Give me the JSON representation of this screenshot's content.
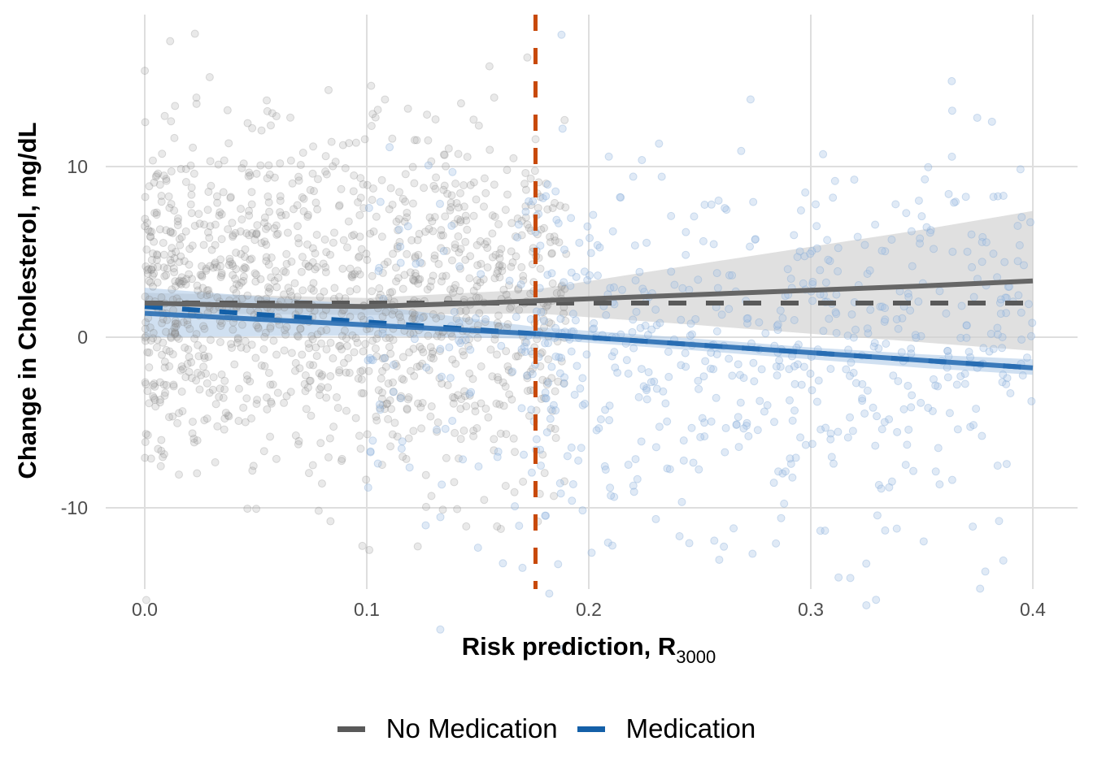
{
  "chart_data": {
    "type": "scatter",
    "title": "",
    "xlabel": "Risk prediction, R",
    "xlabel_subscript": "3000",
    "ylabel": "Change in Cholesterol, mg/dL",
    "xlim": [
      -0.0,
      0.4
    ],
    "ylim": [
      -14.5,
      18.5
    ],
    "x_ticks": [
      0.0,
      0.1,
      0.2,
      0.3,
      0.4
    ],
    "x_tick_labels": [
      "0.0",
      "0.1",
      "0.2",
      "0.3",
      "0.4"
    ],
    "y_ticks": [
      -10,
      0,
      10
    ],
    "y_tick_labels": [
      "-10",
      "0",
      "10"
    ],
    "grid": true,
    "legend_position": "bottom",
    "threshold": {
      "x": 0.176,
      "color": "#C8490A",
      "style": "dashed"
    },
    "series": [
      {
        "name": "No Medication",
        "color": "#595959",
        "point_color": "#8c8c8c",
        "x_range": [
          0.0,
          0.176
        ],
        "n_points": 1300,
        "y_center": 2.0,
        "y_spread": 5.0,
        "fit_solid": {
          "x": [
            0.0,
            0.05,
            0.1,
            0.15,
            0.2,
            0.25,
            0.3,
            0.35,
            0.4
          ],
          "y": [
            2.0,
            1.85,
            1.8,
            2.0,
            2.25,
            2.5,
            2.75,
            3.0,
            3.3
          ]
        },
        "fit_band": {
          "x": [
            0.0,
            0.1,
            0.176,
            0.25,
            0.3,
            0.35,
            0.4
          ],
          "lower": [
            1.4,
            1.3,
            1.4,
            0.7,
            0.2,
            -0.3,
            -0.8
          ],
          "upper": [
            2.6,
            2.3,
            2.8,
            4.3,
            5.3,
            6.3,
            7.4
          ]
        },
        "fit_dashed": {
          "x": [
            0.0,
            0.4
          ],
          "y": [
            2.0,
            2.0
          ]
        }
      },
      {
        "name": "Medication",
        "color": "#1460A8",
        "point_color": "#a6c4e4",
        "x_range": [
          0.1,
          0.4
        ],
        "n_points": 700,
        "y_center": -1.0,
        "y_spread": 5.5,
        "fit_solid": {
          "x": [
            0.0,
            0.176,
            0.4
          ],
          "y": [
            1.4,
            0.2,
            -1.8
          ]
        },
        "fit_band": {
          "x": [
            0.0,
            0.1,
            0.176,
            0.25,
            0.3,
            0.35,
            0.4
          ],
          "lower": [
            0.0,
            0.1,
            -0.1,
            -0.8,
            -1.3,
            -1.8,
            -2.2
          ],
          "upper": [
            2.9,
            1.9,
            0.6,
            -0.1,
            -0.6,
            -1.0,
            -1.3
          ]
        },
        "fit_dashed": {
          "x": [
            0.0,
            0.176,
            0.4
          ],
          "y": [
            1.8,
            0.2,
            -1.8
          ]
        }
      }
    ]
  },
  "legend": {
    "items": [
      {
        "label": "No Medication",
        "color": "#595959"
      },
      {
        "label": "Medication",
        "color": "#1460A8"
      }
    ]
  }
}
